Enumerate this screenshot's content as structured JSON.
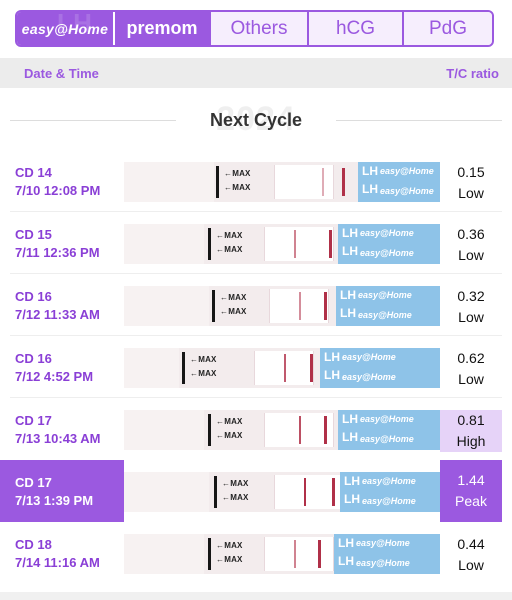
{
  "tabs": {
    "easy": "easy@Home",
    "premom": "premom",
    "others": "Others",
    "hcg": "hCG",
    "pdg": "PdG"
  },
  "colhead": {
    "date": "Date & Time",
    "ratio": "T/C ratio"
  },
  "section": {
    "year": "2024",
    "title": "Next Cycle"
  },
  "strip_text": {
    "max": "←MAX",
    "lh": "LH",
    "brand": "easy@Home"
  },
  "rows": [
    {
      "cd": "CD 14",
      "datetime": "7/10 12:08 PM",
      "ratio": "0.15",
      "level": "Low"
    },
    {
      "cd": "CD 15",
      "datetime": "7/11 12:36 PM",
      "ratio": "0.36",
      "level": "Low"
    },
    {
      "cd": "CD 16",
      "datetime": "7/12 11:33 AM",
      "ratio": "0.32",
      "level": "Low"
    },
    {
      "cd": "CD 16",
      "datetime": "7/12 4:52 PM",
      "ratio": "0.62",
      "level": "Low"
    },
    {
      "cd": "CD 17",
      "datetime": "7/13 10:43 AM",
      "ratio": "0.81",
      "level": "High"
    },
    {
      "cd": "CD 17",
      "datetime": "7/13 1:39 PM",
      "ratio": "1.44",
      "level": "Peak"
    },
    {
      "cd": "CD 18",
      "datetime": "7/14 11:16 AM",
      "ratio": "0.44",
      "level": "Low"
    }
  ],
  "colors": {
    "accent": "#9b59e0",
    "accent_text": "#8a3fd6",
    "high_bg": "#e6d3f8",
    "strip_blue": "#8ec3e8",
    "line_red": "#b03048"
  }
}
